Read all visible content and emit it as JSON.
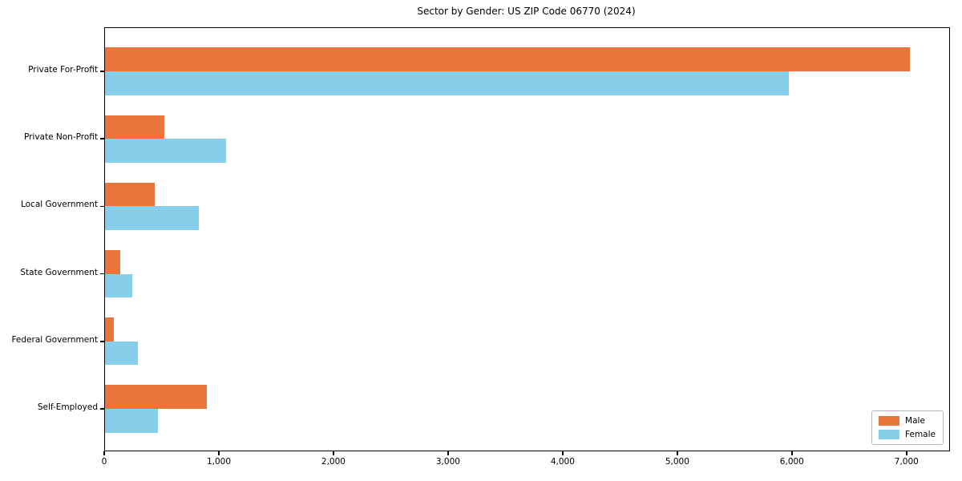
{
  "page": {
    "background": "#ffffff",
    "text_color": "#000000"
  },
  "chart_data": {
    "type": "bar",
    "orientation": "horizontal",
    "title": "Sector by Gender: US ZIP Code 06770 (2024)",
    "xlabel": "",
    "ylabel": "",
    "categories": [
      "Private For-Profit",
      "Private Non-Profit",
      "Local Government",
      "State Government",
      "Federal Government",
      "Self-Employed"
    ],
    "series": [
      {
        "name": "Male",
        "color": "#E8763B",
        "values": [
          7025,
          515,
          435,
          130,
          80,
          890
        ]
      },
      {
        "name": "Female",
        "color": "#87CEEB",
        "values": [
          5965,
          1055,
          820,
          235,
          290,
          460
        ]
      }
    ],
    "xlim": [
      0,
      7365
    ],
    "xticks": [
      0,
      1000,
      2000,
      3000,
      4000,
      5000,
      6000,
      7000
    ],
    "xtick_labels": [
      "0",
      "1,000",
      "2,000",
      "3,000",
      "4,000",
      "5,000",
      "6,000",
      "7,000"
    ],
    "grid": false,
    "legend_position": "lower right",
    "axis_color": "#000000",
    "legend_border_color": "#b8b8b8"
  }
}
